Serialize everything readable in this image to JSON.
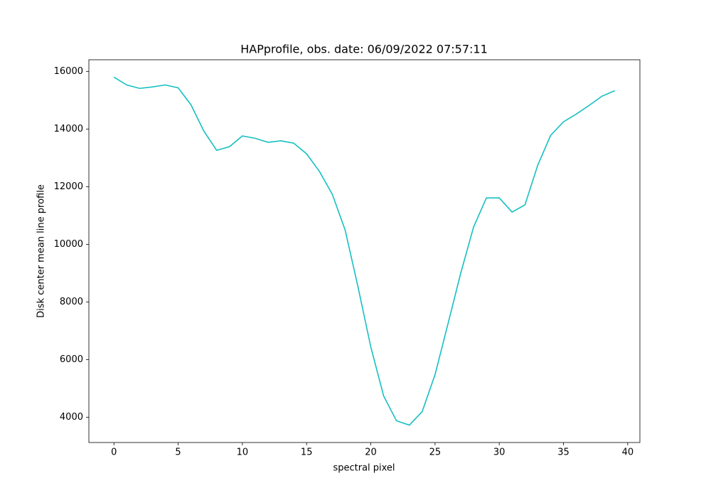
{
  "chart_data": {
    "type": "line",
    "title": "HAPprofile, obs. date: 06/09/2022 07:57:11",
    "xlabel": "spectral pixel",
    "ylabel": "Disk center mean line profile",
    "x": [
      0,
      1,
      2,
      3,
      4,
      5,
      6,
      7,
      8,
      9,
      10,
      11,
      12,
      13,
      14,
      15,
      16,
      17,
      18,
      19,
      20,
      21,
      22,
      23,
      24,
      25,
      26,
      27,
      28,
      29,
      30,
      31,
      32,
      33,
      34,
      35,
      36,
      37,
      38,
      39
    ],
    "values": [
      15800,
      15530,
      15410,
      15460,
      15530,
      15430,
      14840,
      13930,
      13260,
      13390,
      13760,
      13680,
      13540,
      13590,
      13510,
      13140,
      12530,
      11740,
      10500,
      8530,
      6440,
      4740,
      3880,
      3730,
      4200,
      5480,
      7230,
      9000,
      10600,
      11610,
      11610,
      11120,
      11370,
      12750,
      13780,
      14250,
      14520,
      14820,
      15140,
      15330
    ],
    "color": "#17bfc2",
    "xlim": [
      -1.95,
      40.95
    ],
    "ylim": [
      3127,
      16403
    ],
    "xticks": [
      0,
      5,
      10,
      15,
      20,
      25,
      30,
      35,
      40
    ],
    "yticks": [
      4000,
      6000,
      8000,
      10000,
      12000,
      14000,
      16000
    ],
    "grid": false
  }
}
